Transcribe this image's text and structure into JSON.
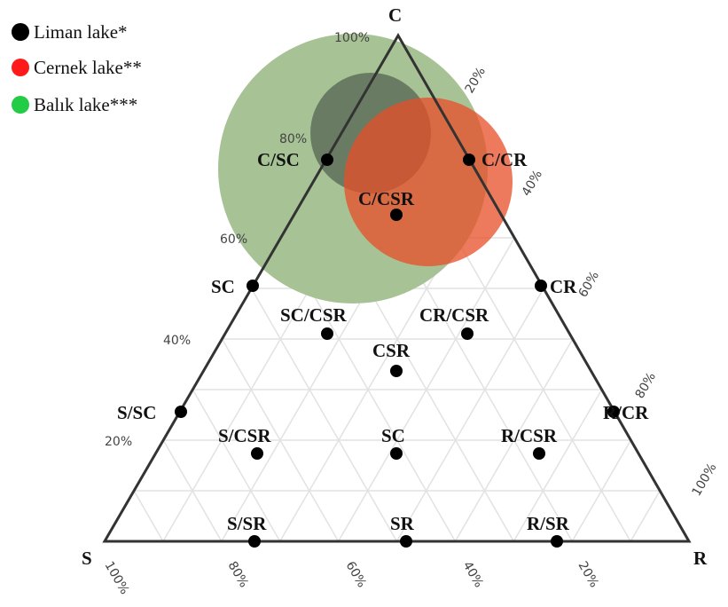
{
  "legend": [
    "Liman lake*",
    "Cernek lake**",
    "Balık lake***"
  ],
  "vertices": {
    "C": "C",
    "S": "S",
    "R": "R"
  },
  "points": [
    "C/SC",
    "C/CR",
    "C/CSR",
    "SC",
    "CR",
    "SC/CSR",
    "CR/CSR",
    "CSR",
    "S/SC",
    "R/CR",
    "S/CSR",
    "SC",
    "R/CSR",
    "S/SR",
    "SR",
    "R/SR"
  ],
  "left_ticks": [
    "100%",
    "80%",
    "60%",
    "40%",
    "20%"
  ],
  "right_ticks": [
    "20%",
    "40%",
    "60%",
    "80%",
    "100%"
  ],
  "bottom_ticks": [
    "100%",
    "80%",
    "60%",
    "40%",
    "20%"
  ]
}
